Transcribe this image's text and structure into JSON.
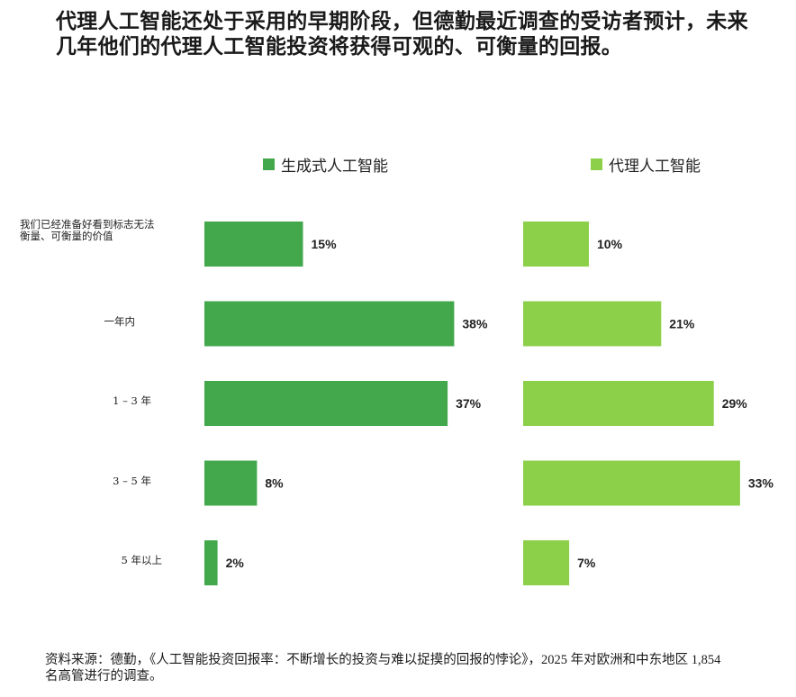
{
  "title": {
    "line1": "代理人工智能还处于采用的早期阶段，但德勤最近调查的受访者预计，未来",
    "line2": "几年他们的代理人工智能投资将获得可观的、可衡量的回报。"
  },
  "colors": {
    "series1": "#43a84c",
    "series2": "#8cd04a"
  },
  "chart_data": {
    "type": "bar",
    "orientation": "horizontal",
    "categories": [
      "我们已经准备好看到标志无法衡量、可衡量的价值",
      "一年内",
      "1 – 3 年",
      "3 – 5 年",
      "5 年以上"
    ],
    "category_lines": [
      [
        "我们已经准备好看到标志无法",
        "衡量、可衡量的价值"
      ],
      [
        "一年内"
      ],
      [
        "1 – 3 年"
      ],
      [
        "3 – 5 年"
      ],
      [
        "5 年以上"
      ]
    ],
    "series": [
      {
        "name": "生成式人工智能",
        "values": [
          15,
          38,
          37,
          8,
          2
        ],
        "labels": [
          "15%",
          "38%",
          "37%",
          "8%",
          "2%"
        ]
      },
      {
        "name": "代理人工智能",
        "values": [
          10,
          21,
          29,
          33,
          7
        ],
        "labels": [
          "10%",
          "21%",
          "29%",
          "33%",
          "7%"
        ]
      }
    ],
    "unit": "%",
    "layout": "side-by-side panels, one per series",
    "legend_position": "top",
    "grid": false
  },
  "footer": {
    "line1": "资料来源：德勤，《人工智能投资回报率：不断增长的投资与难以捉摸的回报的悖论》，2025 年对欧洲和中东地区 1,854",
    "line2": "名高管进行的调查。"
  }
}
